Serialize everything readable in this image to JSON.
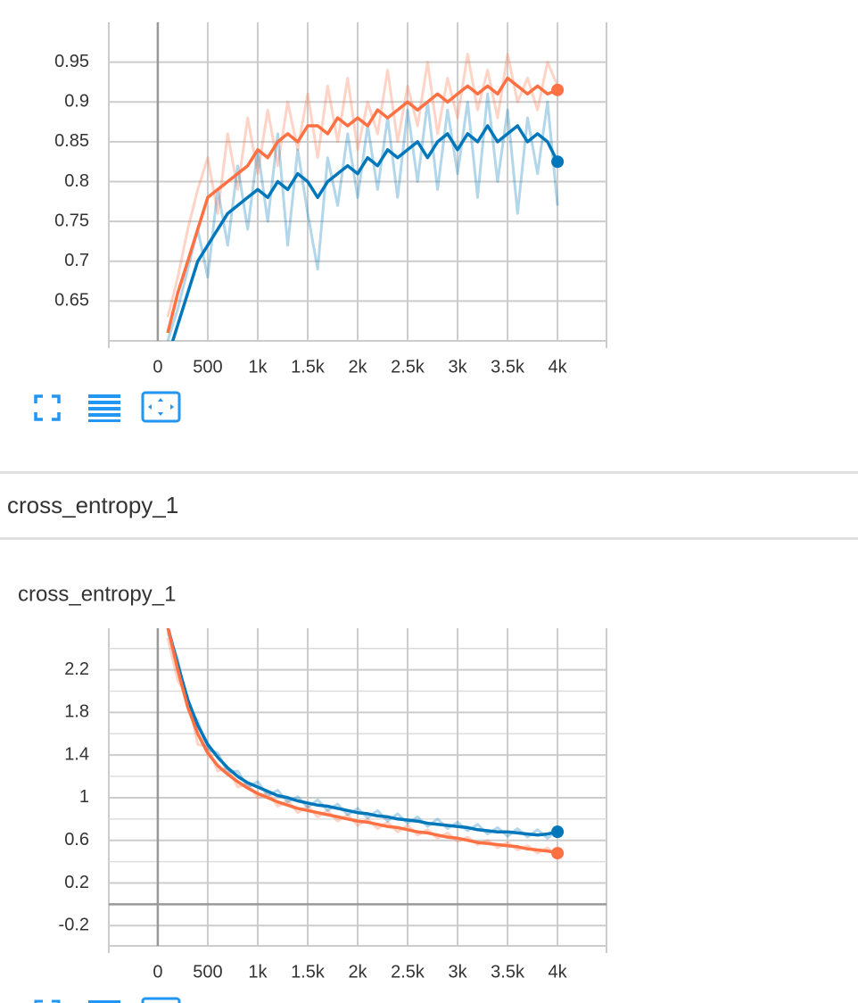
{
  "section_title": "cross_entropy_1",
  "chart_data": [
    {
      "type": "line",
      "x": [
        100,
        200,
        300,
        400,
        500,
        600,
        700,
        800,
        900,
        1000,
        1100,
        1200,
        1300,
        1400,
        1500,
        1600,
        1700,
        1800,
        1900,
        2000,
        2100,
        2200,
        2300,
        2400,
        2500,
        2600,
        2700,
        2800,
        2900,
        3000,
        3100,
        3200,
        3300,
        3400,
        3500,
        3600,
        3700,
        3800,
        3900,
        4000
      ],
      "xlim": [
        -490,
        4490
      ],
      "xticks": [
        0,
        500,
        {
          "value": 1000,
          "label": "1k"
        },
        {
          "value": 1500,
          "label": "1.5k"
        },
        {
          "value": 2000,
          "label": "2k"
        },
        {
          "value": 2500,
          "label": "2.5k"
        },
        {
          "value": 3000,
          "label": "3k"
        },
        {
          "value": 3500,
          "label": "3.5k"
        },
        {
          "value": 4000,
          "label": "4k"
        }
      ],
      "ylim": [
        0.6,
        1.0
      ],
      "yticks": [
        0.65,
        {
          "value": 0.7,
          "label": "0.7"
        },
        0.75,
        {
          "value": 0.8,
          "label": "0.8"
        },
        0.85,
        {
          "value": 0.9,
          "label": "0.9"
        },
        0.95
      ],
      "grid": true,
      "series": [
        {
          "color": "#ff7043",
          "opacity": 0.3,
          "values": [
            0.63,
            0.68,
            0.74,
            0.79,
            0.83,
            0.76,
            0.86,
            0.79,
            0.88,
            0.81,
            0.89,
            0.82,
            0.9,
            0.84,
            0.91,
            0.83,
            0.92,
            0.85,
            0.93,
            0.84,
            0.9,
            0.86,
            0.94,
            0.85,
            0.92,
            0.87,
            0.95,
            0.86,
            0.93,
            0.88,
            0.96,
            0.89,
            0.94,
            0.88,
            0.96,
            0.9,
            0.93,
            0.89,
            0.95,
            0.92
          ]
        },
        {
          "color": "#0077bb",
          "opacity": 0.3,
          "values": [
            0.6,
            0.64,
            0.69,
            0.74,
            0.68,
            0.79,
            0.72,
            0.82,
            0.74,
            0.84,
            0.75,
            0.86,
            0.72,
            0.84,
            0.76,
            0.69,
            0.83,
            0.77,
            0.86,
            0.78,
            0.87,
            0.79,
            0.88,
            0.78,
            0.89,
            0.8,
            0.9,
            0.79,
            0.89,
            0.81,
            0.9,
            0.78,
            0.91,
            0.8,
            0.89,
            0.76,
            0.88,
            0.81,
            0.9,
            0.77
          ]
        },
        {
          "color": "#ff7043",
          "opacity": 1,
          "values": [
            0.61,
            0.66,
            0.7,
            0.74,
            0.78,
            0.79,
            0.8,
            0.81,
            0.82,
            0.84,
            0.83,
            0.85,
            0.86,
            0.85,
            0.87,
            0.87,
            0.86,
            0.88,
            0.87,
            0.88,
            0.87,
            0.89,
            0.88,
            0.89,
            0.9,
            0.89,
            0.9,
            0.91,
            0.9,
            0.91,
            0.92,
            0.91,
            0.92,
            0.91,
            0.93,
            0.92,
            0.91,
            0.92,
            0.91,
            0.915
          ]
        },
        {
          "color": "#0077bb",
          "opacity": 1,
          "values": [
            0.58,
            0.62,
            0.66,
            0.7,
            0.72,
            0.74,
            0.76,
            0.77,
            0.78,
            0.79,
            0.78,
            0.8,
            0.79,
            0.81,
            0.8,
            0.78,
            0.8,
            0.81,
            0.82,
            0.81,
            0.83,
            0.82,
            0.84,
            0.83,
            0.84,
            0.85,
            0.83,
            0.85,
            0.86,
            0.84,
            0.86,
            0.85,
            0.87,
            0.85,
            0.86,
            0.87,
            0.85,
            0.86,
            0.85,
            0.825
          ]
        }
      ]
    },
    {
      "type": "line",
      "title": "cross_entropy_1",
      "x": [
        100,
        200,
        300,
        400,
        500,
        600,
        700,
        800,
        900,
        1000,
        1100,
        1200,
        1300,
        1400,
        1500,
        1600,
        1700,
        1800,
        1900,
        2000,
        2100,
        2200,
        2300,
        2400,
        2500,
        2600,
        2700,
        2800,
        2900,
        3000,
        3100,
        3200,
        3300,
        3400,
        3500,
        3600,
        3700,
        3800,
        3900,
        4000
      ],
      "xlim": [
        -490,
        4490
      ],
      "xticks": [
        0,
        500,
        {
          "value": 1000,
          "label": "1k"
        },
        {
          "value": 1500,
          "label": "1.5k"
        },
        {
          "value": 2000,
          "label": "2k"
        },
        {
          "value": 2500,
          "label": "2.5k"
        },
        {
          "value": 3000,
          "label": "3k"
        },
        {
          "value": 3500,
          "label": "3.5k"
        },
        {
          "value": 4000,
          "label": "4k"
        }
      ],
      "ylim": [
        -0.39,
        2.59
      ],
      "yticks": [
        -0.2,
        0.2,
        0.6,
        1,
        1.4,
        1.8,
        2.2
      ],
      "yminorticks": [
        0,
        0.4,
        0.8,
        1.2,
        1.6,
        2,
        2.4
      ],
      "grid": true,
      "series": [
        {
          "color": "#ff7043",
          "opacity": 0.3,
          "values": [
            2.5,
            2.1,
            1.95,
            1.5,
            1.48,
            1.25,
            1.28,
            1.1,
            1.13,
            1.0,
            1.05,
            0.92,
            0.97,
            0.86,
            0.92,
            0.82,
            0.88,
            0.78,
            0.84,
            0.74,
            0.8,
            0.71,
            0.77,
            0.68,
            0.74,
            0.65,
            0.7,
            0.62,
            0.67,
            0.59,
            0.63,
            0.56,
            0.6,
            0.53,
            0.58,
            0.51,
            0.55,
            0.48,
            0.53,
            0.46
          ]
        },
        {
          "color": "#0077bb",
          "opacity": 0.3,
          "values": [
            2.55,
            2.3,
            1.85,
            1.72,
            1.45,
            1.42,
            1.24,
            1.25,
            1.1,
            1.15,
            1.02,
            1.07,
            0.96,
            1.01,
            0.91,
            0.98,
            0.88,
            0.94,
            0.84,
            0.9,
            0.81,
            0.88,
            0.78,
            0.85,
            0.76,
            0.82,
            0.73,
            0.8,
            0.71,
            0.77,
            0.69,
            0.75,
            0.66,
            0.72,
            0.64,
            0.71,
            0.63,
            0.7,
            0.62,
            0.7
          ]
        },
        {
          "color": "#0077bb",
          "opacity": 1,
          "values": [
            2.6,
            2.25,
            1.92,
            1.68,
            1.5,
            1.38,
            1.28,
            1.2,
            1.14,
            1.1,
            1.06,
            1.02,
            1.0,
            0.97,
            0.95,
            0.93,
            0.92,
            0.9,
            0.88,
            0.86,
            0.85,
            0.83,
            0.82,
            0.8,
            0.79,
            0.78,
            0.76,
            0.75,
            0.74,
            0.73,
            0.72,
            0.7,
            0.69,
            0.68,
            0.68,
            0.67,
            0.66,
            0.65,
            0.66,
            0.68
          ]
        },
        {
          "color": "#ff7043",
          "opacity": 1,
          "values": [
            2.6,
            2.2,
            1.85,
            1.6,
            1.42,
            1.3,
            1.22,
            1.15,
            1.09,
            1.04,
            1.0,
            0.96,
            0.93,
            0.9,
            0.88,
            0.86,
            0.84,
            0.82,
            0.8,
            0.78,
            0.77,
            0.75,
            0.73,
            0.72,
            0.7,
            0.68,
            0.67,
            0.65,
            0.63,
            0.62,
            0.6,
            0.58,
            0.57,
            0.56,
            0.55,
            0.54,
            0.52,
            0.51,
            0.5,
            0.48
          ]
        }
      ]
    }
  ]
}
